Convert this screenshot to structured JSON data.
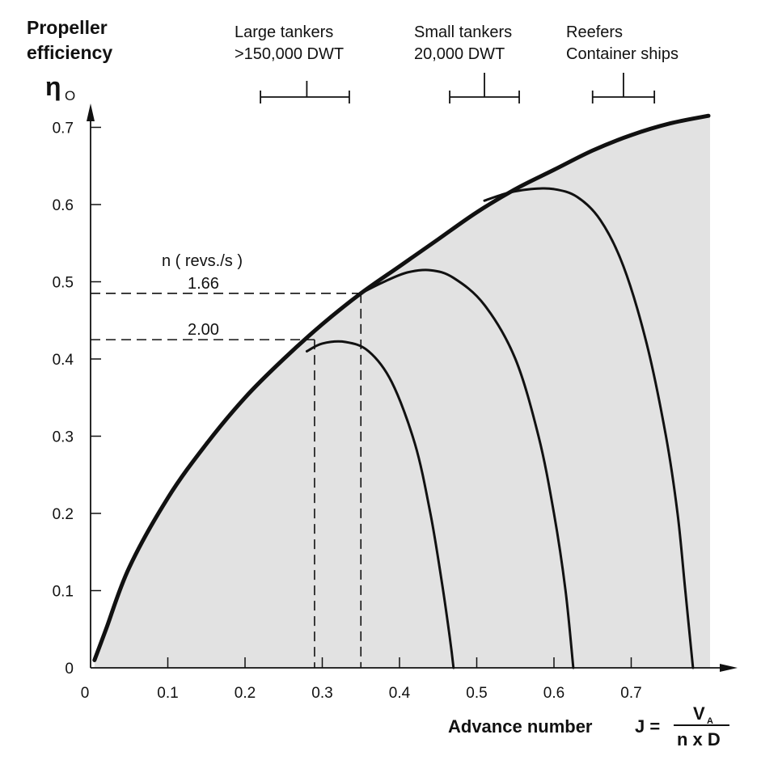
{
  "chart_data": {
    "type": "line",
    "ylabel_lines": [
      "Propeller",
      "efficiency"
    ],
    "ysymbol": "η",
    "ysymbol_sub": "O",
    "xlabel": "Advance number",
    "xformula": {
      "lhs": "J =",
      "numerator": "V",
      "numerator_sub": "A",
      "denominator": "n x D"
    },
    "xlim": [
      0,
      0.8
    ],
    "ylim": [
      0,
      0.7
    ],
    "xticks": [
      {
        "v": 0,
        "label": "0"
      },
      {
        "v": 0.1,
        "label": "0.1"
      },
      {
        "v": 0.2,
        "label": "0.2"
      },
      {
        "v": 0.3,
        "label": "0.3"
      },
      {
        "v": 0.4,
        "label": "0.4"
      },
      {
        "v": 0.5,
        "label": "0.5"
      },
      {
        "v": 0.6,
        "label": "0.6"
      },
      {
        "v": 0.7,
        "label": "0.7"
      }
    ],
    "yticks": [
      {
        "v": 0,
        "label": "0"
      },
      {
        "v": 0.1,
        "label": "0.1"
      },
      {
        "v": 0.2,
        "label": "0.2"
      },
      {
        "v": 0.3,
        "label": "0.3"
      },
      {
        "v": 0.4,
        "label": "0.4"
      },
      {
        "v": 0.5,
        "label": "0.5"
      },
      {
        "v": 0.6,
        "label": "0.6"
      },
      {
        "v": 0.7,
        "label": "0.7"
      }
    ],
    "envelope": {
      "x": [
        0.005,
        0.02,
        0.05,
        0.1,
        0.15,
        0.2,
        0.25,
        0.3,
        0.35,
        0.4,
        0.45,
        0.5,
        0.55,
        0.6,
        0.65,
        0.7,
        0.75,
        0.8
      ],
      "y": [
        0.01,
        0.05,
        0.13,
        0.22,
        0.29,
        0.35,
        0.4,
        0.445,
        0.485,
        0.52,
        0.555,
        0.59,
        0.62,
        0.645,
        0.67,
        0.69,
        0.705,
        0.715
      ]
    },
    "curves": [
      {
        "x": [
          0.28,
          0.3,
          0.33,
          0.36,
          0.39,
          0.42,
          0.44,
          0.455,
          0.465,
          0.47
        ],
        "y": [
          0.41,
          0.42,
          0.422,
          0.41,
          0.37,
          0.29,
          0.2,
          0.11,
          0.04,
          0
        ]
      },
      {
        "x": [
          0.35,
          0.38,
          0.41,
          0.44,
          0.47,
          0.51,
          0.55,
          0.58,
          0.6,
          0.615,
          0.625
        ],
        "y": [
          0.485,
          0.5,
          0.512,
          0.515,
          0.505,
          0.47,
          0.4,
          0.3,
          0.2,
          0.1,
          0
        ]
      },
      {
        "x": [
          0.51,
          0.54,
          0.57,
          0.6,
          0.63,
          0.66,
          0.69,
          0.72,
          0.745,
          0.76,
          0.77,
          0.78
        ],
        "y": [
          0.605,
          0.615,
          0.62,
          0.62,
          0.61,
          0.58,
          0.52,
          0.42,
          0.3,
          0.2,
          0.1,
          0
        ]
      }
    ],
    "annotations": {
      "rev_header": "n ( revs./s )",
      "rev1": {
        "label": "1.66",
        "x": 0.35,
        "y": 0.485
      },
      "rev2": {
        "label": "2.00",
        "x": 0.29,
        "y": 0.425
      }
    },
    "ship_ranges": [
      {
        "label_lines": [
          "Large tankers",
          ">150,000 DWT"
        ],
        "min": 0.22,
        "mid": 0.28,
        "max": 0.335
      },
      {
        "label_lines": [
          "Small tankers",
          "20,000 DWT"
        ],
        "min": 0.465,
        "mid": 0.51,
        "max": 0.555
      },
      {
        "label_lines": [
          "Reefers",
          "Container ships"
        ],
        "min": 0.65,
        "mid": 0.69,
        "max": 0.73
      }
    ]
  }
}
